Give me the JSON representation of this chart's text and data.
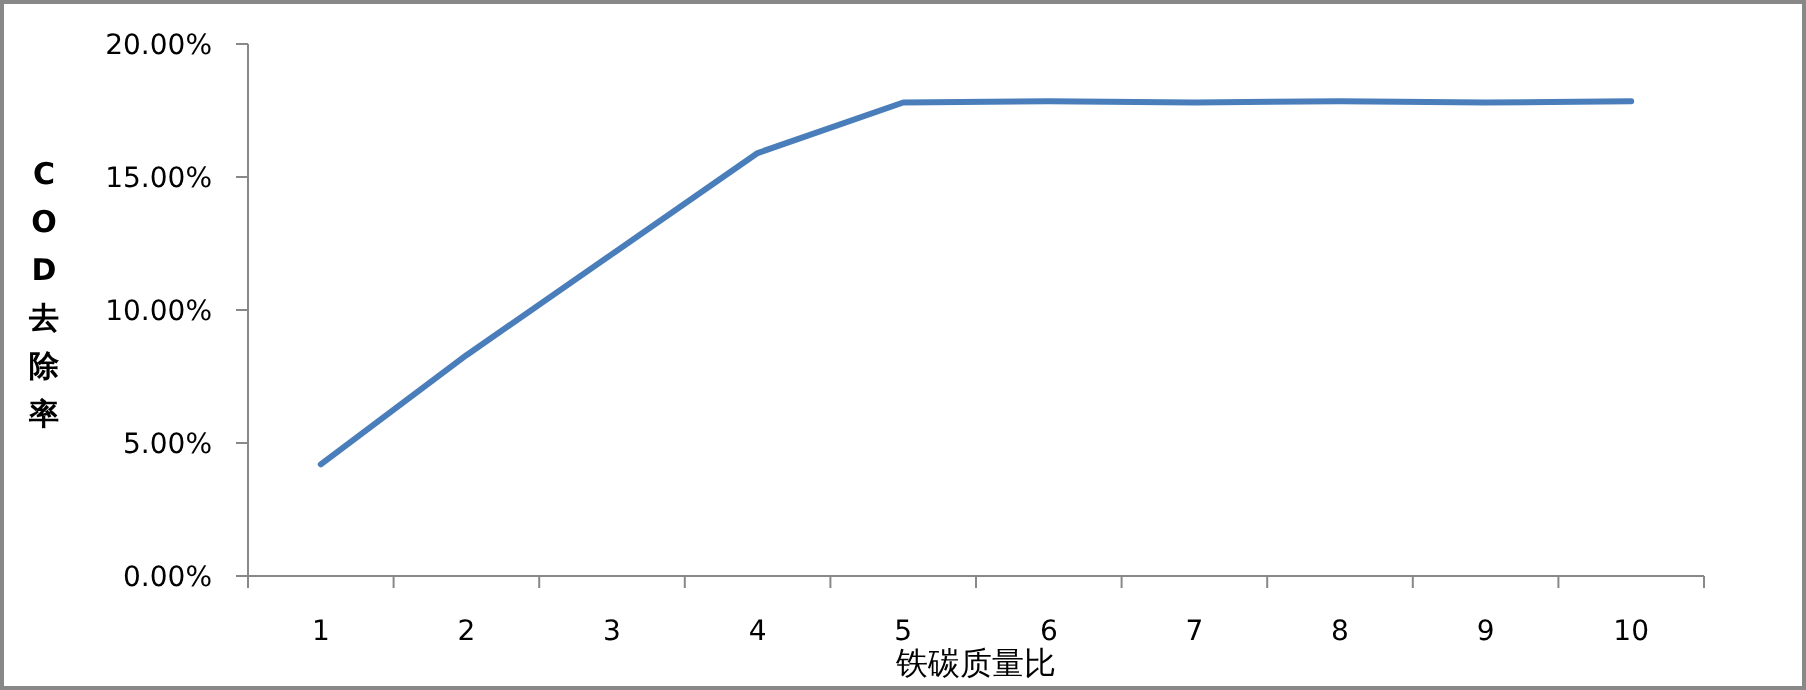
{
  "chart_data": {
    "type": "line",
    "xlabel": "铁碳质量比",
    "ylabel": "COD去除率",
    "categories": [
      "1",
      "2",
      "3",
      "4",
      "5",
      "6",
      "7",
      "8",
      "9",
      "10"
    ],
    "series": [
      {
        "color": "#4a7ebb",
        "values": [
          4.2,
          8.3,
          12.1,
          15.9,
          17.8,
          17.85,
          17.8,
          17.85,
          17.8,
          17.85
        ]
      }
    ],
    "ylim": [
      0,
      20
    ],
    "yticks": [
      {
        "value": 0,
        "label": "0.00%"
      },
      {
        "value": 5,
        "label": "5.00%"
      },
      {
        "value": 10,
        "label": "10.00%"
      },
      {
        "value": 15,
        "label": "15.00%"
      },
      {
        "value": 20,
        "label": "20.00%"
      }
    ],
    "grid": false,
    "marker": "none",
    "line_style": "solid"
  }
}
